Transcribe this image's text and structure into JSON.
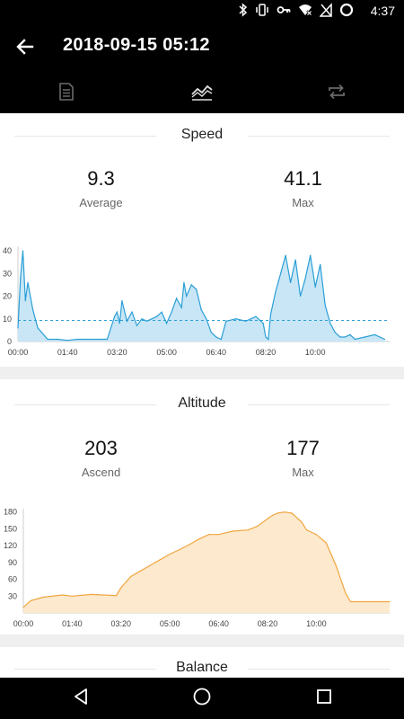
{
  "status": {
    "time": "4:37"
  },
  "header": {
    "title": "2018-09-15 05:12"
  },
  "tabs": [
    "details",
    "charts",
    "repeat"
  ],
  "speed": {
    "title": "Speed",
    "average_value": "9.3",
    "average_label": "Average",
    "max_value": "41.1",
    "max_label": "Max"
  },
  "altitude": {
    "title": "Altitude",
    "ascend_value": "203",
    "ascend_label": "Ascend",
    "max_value": "177",
    "max_label": "Max"
  },
  "balance": {
    "title": "Balance"
  },
  "colors": {
    "speed_line": "#2a9fd6",
    "speed_fill": "#c8e6f6",
    "altitude_line": "#f0a640",
    "altitude_fill": "#fde9cd"
  },
  "chart_data": [
    {
      "type": "area",
      "name": "speed",
      "x_ticks": [
        "00:00",
        "01:40",
        "03:20",
        "05:00",
        "06:40",
        "08:20",
        "10:00"
      ],
      "y_ticks": [
        0,
        10,
        20,
        30,
        40
      ],
      "ylim": [
        0,
        42
      ],
      "average_line": 9.3,
      "x_minutes": [
        0,
        5,
        10,
        15,
        20,
        30,
        40,
        60,
        80,
        100,
        120,
        140,
        160,
        180,
        195,
        200,
        205,
        210,
        220,
        230,
        240,
        250,
        260,
        270,
        280,
        290,
        300,
        310,
        320,
        330,
        335,
        340,
        350,
        360,
        370,
        380,
        390,
        400,
        410,
        420,
        440,
        460,
        480,
        495,
        500,
        505,
        510,
        520,
        530,
        540,
        550,
        560,
        570,
        580,
        590,
        600,
        610,
        620,
        630,
        640,
        650,
        660,
        670,
        680,
        700,
        720,
        740
      ],
      "values": [
        6,
        28,
        40,
        18,
        26,
        14,
        6,
        1,
        1,
        0.5,
        1,
        1,
        1,
        1,
        11,
        13,
        8,
        18,
        9,
        13,
        7,
        10,
        9,
        10,
        11,
        13,
        8,
        13,
        19,
        15,
        26,
        20,
        25,
        23,
        14,
        10,
        4,
        2,
        1,
        9,
        10,
        9,
        11,
        8,
        2,
        1,
        12,
        22,
        30,
        38,
        26,
        36,
        20,
        28,
        38,
        24,
        34,
        16,
        8,
        4,
        2,
        2,
        3,
        1,
        2,
        3,
        1
      ]
    },
    {
      "type": "area",
      "name": "altitude",
      "x_ticks": [
        "00:00",
        "01:40",
        "03:20",
        "05:00",
        "06:40",
        "08:20",
        "10:00"
      ],
      "y_ticks": [
        30,
        60,
        90,
        120,
        150,
        180
      ],
      "ylim": [
        0,
        186
      ],
      "x_minutes": [
        0,
        15,
        40,
        80,
        100,
        140,
        190,
        200,
        220,
        240,
        260,
        280,
        300,
        320,
        340,
        360,
        380,
        400,
        430,
        460,
        480,
        500,
        510,
        520,
        535,
        550,
        570,
        580,
        600,
        620,
        640,
        660,
        670,
        690,
        720,
        750
      ],
      "values": [
        10,
        22,
        28,
        32,
        30,
        33,
        31,
        45,
        65,
        75,
        85,
        95,
        105,
        113,
        122,
        132,
        140,
        140,
        146,
        148,
        155,
        168,
        174,
        178,
        180,
        178,
        162,
        148,
        140,
        125,
        85,
        35,
        20,
        20,
        20,
        20
      ]
    }
  ]
}
